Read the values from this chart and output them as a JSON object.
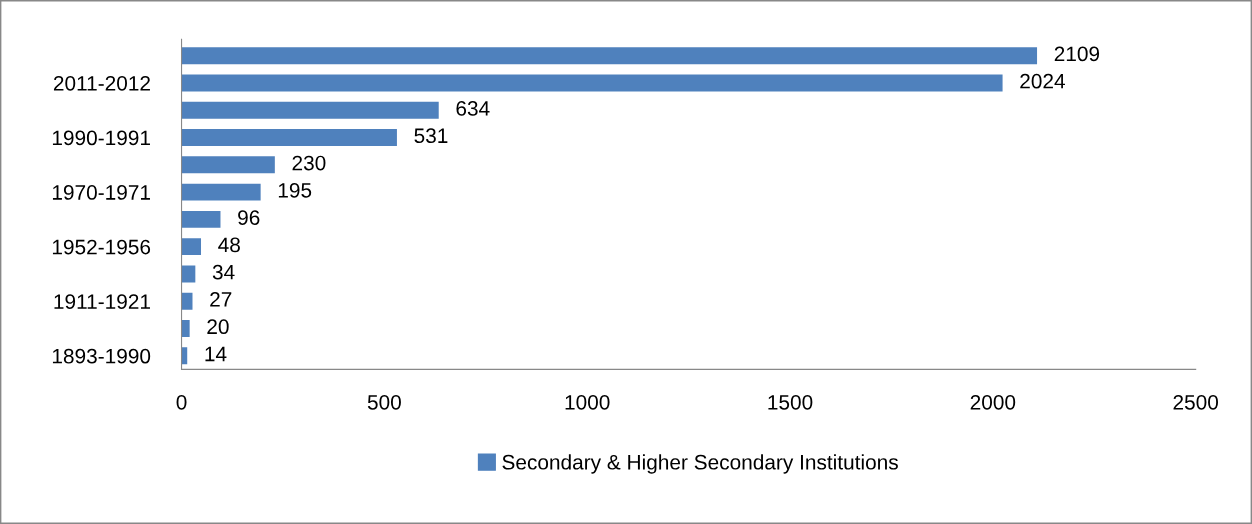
{
  "chart_data": {
    "type": "bar",
    "orientation": "horizontal",
    "categories": [
      null,
      "2011-2012",
      null,
      "1990-1991",
      null,
      "1970-1971",
      null,
      "1952-1956",
      null,
      "1911-1921",
      null,
      "1893-1990"
    ],
    "series": [
      {
        "name": "Secondary & Higher Secondary Institutions",
        "color": "#4f81bd",
        "values": [
          2109,
          2024,
          634,
          531,
          230,
          195,
          96,
          48,
          34,
          27,
          20,
          14
        ]
      }
    ],
    "xlim": [
      0,
      2500
    ],
    "xticks": [
      0,
      500,
      1000,
      1500,
      2000,
      2500
    ],
    "data_labels": true,
    "grid": false,
    "legend": "bottom"
  }
}
